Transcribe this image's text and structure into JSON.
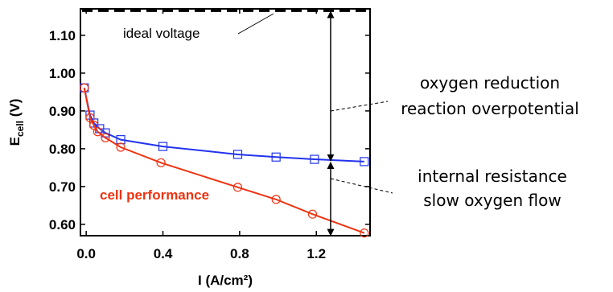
{
  "chart_data": {
    "type": "line",
    "xlabel": "I (A/cm²)",
    "ylabel_main": "E",
    "ylabel_sub": "cell",
    "ylabel_unit": " (V)",
    "xlim": [
      -0.03,
      1.48
    ],
    "ylim": [
      0.57,
      1.17
    ],
    "xticks": [
      "0.0",
      "0.4",
      "0.8",
      "1.2"
    ],
    "xtick_values": [
      0.0,
      0.4,
      0.8,
      1.2
    ],
    "yticks": [
      "0.60",
      "0.70",
      "0.80",
      "0.90",
      "1.00",
      "1.10"
    ],
    "ytick_values": [
      0.6,
      0.7,
      0.8,
      0.9,
      1.0,
      1.1
    ],
    "ideal_voltage": 1.165,
    "series": [
      {
        "key": "blue",
        "marker": "square",
        "color": "#2233ee",
        "points": [
          [
            -0.01,
            0.961
          ],
          [
            0.02,
            0.889
          ],
          [
            0.04,
            0.868
          ],
          [
            0.07,
            0.853
          ],
          [
            0.1,
            0.842
          ],
          [
            0.18,
            0.824
          ],
          [
            0.4,
            0.806
          ],
          [
            0.79,
            0.785
          ],
          [
            0.99,
            0.778
          ],
          [
            1.19,
            0.772
          ],
          [
            1.45,
            0.766
          ]
        ]
      },
      {
        "key": "red",
        "marker": "circle",
        "color": "#ee3311",
        "points": [
          [
            -0.01,
            0.961
          ],
          [
            0.02,
            0.882
          ],
          [
            0.04,
            0.862
          ],
          [
            0.06,
            0.845
          ],
          [
            0.1,
            0.829
          ],
          [
            0.18,
            0.804
          ],
          [
            0.39,
            0.763
          ],
          [
            0.79,
            0.698
          ],
          [
            0.99,
            0.666
          ],
          [
            1.18,
            0.627
          ],
          [
            1.45,
            0.577
          ]
        ]
      }
    ],
    "annotations": {
      "ideal_label": "ideal voltage",
      "cell_performance": "cell performance",
      "orr_line1": "oxygen reduction",
      "orr_line2": "reaction overpotential",
      "ir_line1": "internal resistance",
      "ir_line2": "slow oxygen flow"
    },
    "colors": {
      "cell_performance_text": "#ee3311"
    }
  }
}
